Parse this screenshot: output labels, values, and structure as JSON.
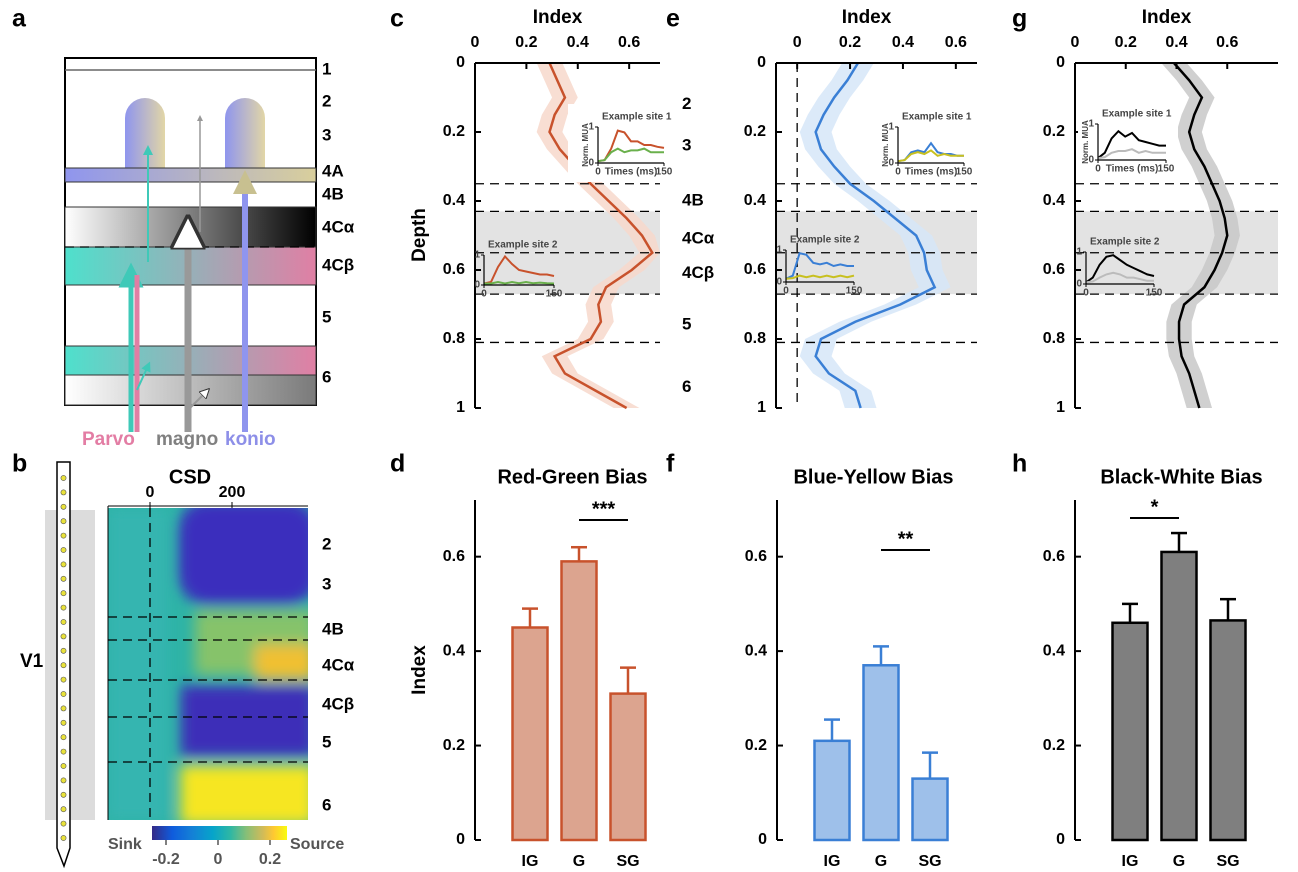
{
  "panel_labels": [
    "a",
    "b",
    "c",
    "d",
    "e",
    "f",
    "g",
    "h"
  ],
  "diagram": {
    "layers": [
      "1",
      "2",
      "3",
      "4A",
      "4B",
      "4Cα",
      "4Cβ",
      "5",
      "6"
    ],
    "pathways": [
      "Parvo",
      "magno",
      "konio"
    ]
  },
  "csd": {
    "title": "CSD",
    "area": "V1",
    "xticks": [
      0,
      200
    ],
    "layers": [
      "2",
      "3",
      "4B",
      "4Cα",
      "4Cβ",
      "5",
      "6"
    ],
    "colorbar": {
      "low_label": "Sink",
      "high_label": "Source",
      "ticks": [
        -0.2,
        0,
        0.2
      ]
    }
  },
  "chart_data": [
    {
      "type": "line",
      "xlabel": "Index",
      "ylabel": "Depth",
      "xlim": [
        0,
        0.72
      ],
      "xticks": [
        0,
        0.2,
        0.4,
        0.6
      ],
      "ylim": [
        0,
        1
      ],
      "yticks": [
        0,
        0.2,
        0.4,
        0.6,
        0.8,
        1
      ],
      "depth": [
        0,
        0.05,
        0.1,
        0.15,
        0.2,
        0.25,
        0.3,
        0.35,
        0.4,
        0.45,
        0.5,
        0.55,
        0.6,
        0.65,
        0.7,
        0.75,
        0.8,
        0.85,
        0.9,
        0.95,
        1
      ],
      "values": [
        0.29,
        0.32,
        0.35,
        0.31,
        0.29,
        0.33,
        0.39,
        0.45,
        0.52,
        0.59,
        0.65,
        0.69,
        0.61,
        0.51,
        0.48,
        0.49,
        0.45,
        0.31,
        0.35,
        0.47,
        0.59
      ],
      "lower": [
        0.24,
        0.27,
        0.3,
        0.26,
        0.24,
        0.28,
        0.34,
        0.4,
        0.47,
        0.54,
        0.6,
        0.64,
        0.56,
        0.46,
        0.43,
        0.44,
        0.4,
        0.26,
        0.3,
        0.42,
        0.54
      ],
      "upper": [
        0.34,
        0.37,
        0.4,
        0.36,
        0.34,
        0.38,
        0.44,
        0.5,
        0.57,
        0.64,
        0.7,
        0.72,
        0.66,
        0.56,
        0.53,
        0.54,
        0.5,
        0.36,
        0.4,
        0.52,
        0.64
      ],
      "color": "#c8522c",
      "band_color": "#f7d8cb",
      "zero_line": false,
      "boundaries": [
        0.35,
        0.43,
        0.55,
        0.67,
        0.81
      ],
      "layers": [
        "2",
        "3",
        "4B",
        "4Cα",
        "4Cβ",
        "5",
        "6"
      ],
      "insets": [
        {
          "title": "Example site 1",
          "ylabel": "Norm. MUA",
          "xlabel": "Times (ms)",
          "xlim": [
            0,
            150
          ],
          "ylim": [
            0,
            1
          ],
          "xticks": [
            0,
            150
          ],
          "yticks": [
            0,
            1
          ],
          "x": [
            0,
            15,
            30,
            45,
            60,
            75,
            90,
            105,
            120,
            135,
            150
          ],
          "series": [
            {
              "color": "#c8522c",
              "values": [
                0.05,
                0.08,
                0.4,
                0.9,
                0.85,
                0.6,
                0.6,
                0.5,
                0.5,
                0.45,
                0.42
              ]
            },
            {
              "color": "#6ab04c",
              "values": [
                0.05,
                0.08,
                0.3,
                0.4,
                0.3,
                0.35,
                0.35,
                0.4,
                0.3,
                0.3,
                0.3
              ]
            }
          ]
        },
        {
          "title": "Example site 2",
          "xlim": [
            0,
            150
          ],
          "ylim": [
            0,
            1
          ],
          "xticks": [
            0,
            150
          ],
          "yticks": [
            0,
            1
          ],
          "x": [
            0,
            15,
            30,
            45,
            60,
            75,
            90,
            105,
            120,
            135,
            150
          ],
          "series": [
            {
              "color": "#c8522c",
              "values": [
                0.05,
                0.1,
                0.6,
                0.95,
                0.7,
                0.5,
                0.45,
                0.4,
                0.35,
                0.35,
                0.3
              ]
            },
            {
              "color": "#6ab04c",
              "values": [
                0.05,
                0.05,
                0.1,
                0.05,
                0.1,
                0.06,
                0.1,
                0.06,
                0.08,
                0.06,
                0.05
              ]
            }
          ]
        }
      ]
    },
    {
      "type": "line",
      "xlabel": "Index",
      "xlim": [
        -0.08,
        0.68
      ],
      "xticks": [
        0,
        0.2,
        0.4,
        0.6
      ],
      "ylim": [
        0,
        1
      ],
      "yticks": [
        0,
        0.2,
        0.4,
        0.6,
        0.8,
        1
      ],
      "depth": [
        0,
        0.05,
        0.1,
        0.15,
        0.2,
        0.25,
        0.3,
        0.35,
        0.4,
        0.45,
        0.5,
        0.55,
        0.6,
        0.65,
        0.7,
        0.75,
        0.8,
        0.85,
        0.9,
        0.95,
        1
      ],
      "values": [
        0.23,
        0.19,
        0.14,
        0.1,
        0.07,
        0.09,
        0.14,
        0.2,
        0.29,
        0.37,
        0.45,
        0.48,
        0.49,
        0.52,
        0.39,
        0.22,
        0.09,
        0.07,
        0.12,
        0.22,
        0.24
      ],
      "lower": [
        0.17,
        0.13,
        0.08,
        0.04,
        0.01,
        0.03,
        0.08,
        0.14,
        0.23,
        0.31,
        0.39,
        0.42,
        0.43,
        0.46,
        0.33,
        0.16,
        0.03,
        0.01,
        0.06,
        0.16,
        0.18
      ],
      "upper": [
        0.29,
        0.25,
        0.2,
        0.16,
        0.13,
        0.15,
        0.2,
        0.26,
        0.35,
        0.43,
        0.51,
        0.54,
        0.55,
        0.58,
        0.45,
        0.28,
        0.15,
        0.13,
        0.18,
        0.28,
        0.3
      ],
      "color": "#3a7fd5",
      "band_color": "#d6e6f8",
      "zero_line": true,
      "boundaries": [
        0.35,
        0.43,
        0.55,
        0.67,
        0.81
      ],
      "insets": [
        {
          "title": "Example site 1",
          "ylabel": "Norm. MUA",
          "xlabel": "Times (ms)",
          "xlim": [
            0,
            150
          ],
          "ylim": [
            0,
            1
          ],
          "xticks": [
            0,
            150
          ],
          "yticks": [
            0,
            1
          ],
          "x": [
            0,
            15,
            30,
            45,
            60,
            75,
            90,
            105,
            120,
            135,
            150
          ],
          "series": [
            {
              "color": "#3a7fd5",
              "values": [
                0.05,
                0.08,
                0.3,
                0.35,
                0.3,
                0.55,
                0.3,
                0.25,
                0.25,
                0.2,
                0.2
              ]
            },
            {
              "color": "#c8c020",
              "values": [
                0.05,
                0.08,
                0.25,
                0.3,
                0.25,
                0.35,
                0.2,
                0.25,
                0.2,
                0.2,
                0.2
              ]
            }
          ]
        },
        {
          "title": "Example site 2",
          "xlim": [
            0,
            150
          ],
          "ylim": [
            0,
            1
          ],
          "xticks": [
            0,
            150
          ],
          "yticks": [
            0,
            1
          ],
          "x": [
            0,
            15,
            30,
            45,
            60,
            75,
            90,
            105,
            120,
            135,
            150
          ],
          "series": [
            {
              "color": "#3a7fd5",
              "values": [
                0.1,
                0.2,
                0.9,
                0.85,
                0.6,
                0.55,
                0.6,
                0.5,
                0.55,
                0.5,
                0.5
              ]
            },
            {
              "color": "#c8c020",
              "values": [
                0.1,
                0.12,
                0.2,
                0.15,
                0.2,
                0.15,
                0.2,
                0.15,
                0.2,
                0.15,
                0.2
              ]
            }
          ]
        }
      ]
    },
    {
      "type": "line",
      "xlabel": "Index",
      "xlim": [
        0,
        0.8
      ],
      "xticks": [
        0,
        0.2,
        0.4,
        0.6
      ],
      "ylim": [
        0,
        1
      ],
      "yticks": [
        0,
        0.2,
        0.4,
        0.6,
        0.8,
        1
      ],
      "depth": [
        0,
        0.05,
        0.1,
        0.15,
        0.2,
        0.25,
        0.3,
        0.35,
        0.4,
        0.45,
        0.5,
        0.55,
        0.6,
        0.65,
        0.7,
        0.75,
        0.8,
        0.85,
        0.9,
        0.95,
        1
      ],
      "values": [
        0.39,
        0.45,
        0.5,
        0.47,
        0.45,
        0.47,
        0.51,
        0.54,
        0.57,
        0.59,
        0.6,
        0.58,
        0.55,
        0.51,
        0.43,
        0.41,
        0.41,
        0.42,
        0.45,
        0.47,
        0.49
      ],
      "lower": [
        0.34,
        0.4,
        0.45,
        0.42,
        0.4,
        0.42,
        0.46,
        0.49,
        0.52,
        0.54,
        0.55,
        0.53,
        0.5,
        0.46,
        0.38,
        0.36,
        0.36,
        0.37,
        0.4,
        0.42,
        0.44
      ],
      "upper": [
        0.44,
        0.5,
        0.55,
        0.52,
        0.5,
        0.52,
        0.56,
        0.59,
        0.62,
        0.64,
        0.65,
        0.63,
        0.6,
        0.56,
        0.48,
        0.46,
        0.46,
        0.47,
        0.5,
        0.52,
        0.54
      ],
      "color": "#000000",
      "band_color": "#c8c8c8",
      "zero_line": false,
      "boundaries": [
        0.35,
        0.43,
        0.55,
        0.67,
        0.81
      ],
      "insets": [
        {
          "title": "Example site 1",
          "ylabel": "Norm. MUA",
          "xlabel": "Times (ms)",
          "xlim": [
            0,
            150
          ],
          "ylim": [
            0,
            1
          ],
          "xticks": [
            0,
            150
          ],
          "yticks": [
            0,
            1
          ],
          "x": [
            0,
            15,
            30,
            45,
            60,
            75,
            90,
            105,
            120,
            135,
            150
          ],
          "series": [
            {
              "color": "#000000",
              "values": [
                0.05,
                0.2,
                0.6,
                0.8,
                0.65,
                0.75,
                0.55,
                0.5,
                0.45,
                0.4,
                0.4
              ]
            },
            {
              "color": "#bbbbbb",
              "values": [
                0.05,
                0.08,
                0.2,
                0.25,
                0.25,
                0.3,
                0.2,
                0.25,
                0.2,
                0.2,
                0.2
              ]
            }
          ]
        },
        {
          "title": "Example site 2",
          "xlim": [
            0,
            150
          ],
          "ylim": [
            0,
            1
          ],
          "xticks": [
            0,
            150
          ],
          "yticks": [
            0,
            1
          ],
          "x": [
            0,
            15,
            30,
            45,
            60,
            75,
            90,
            105,
            120,
            135,
            150
          ],
          "series": [
            {
              "color": "#000000",
              "values": [
                0.05,
                0.2,
                0.6,
                0.85,
                0.9,
                0.75,
                0.6,
                0.5,
                0.4,
                0.3,
                0.25
              ]
            },
            {
              "color": "#bbbbbb",
              "values": [
                0.05,
                0.08,
                0.2,
                0.3,
                0.35,
                0.3,
                0.2,
                0.2,
                0.15,
                0.1,
                0.1
              ]
            }
          ]
        }
      ]
    },
    {
      "type": "bar",
      "title": "Red-Green Bias",
      "ylabel": "Index",
      "categories": [
        "IG",
        "G",
        "SG"
      ],
      "values": [
        0.45,
        0.59,
        0.31
      ],
      "errors": [
        0.04,
        0.03,
        0.055
      ],
      "color": "#dca48f",
      "edge_color": "#c8522c",
      "ylim": [
        0,
        0.72
      ],
      "yticks": [
        0,
        0.2,
        0.4,
        0.6
      ],
      "significance": "***"
    },
    {
      "type": "bar",
      "title": "Blue-Yellow Bias",
      "categories": [
        "IG",
        "G",
        "SG"
      ],
      "values": [
        0.21,
        0.37,
        0.13
      ],
      "errors": [
        0.045,
        0.04,
        0.055
      ],
      "color": "#9ec0ea",
      "edge_color": "#3a7fd5",
      "ylim": [
        0,
        0.72
      ],
      "yticks": [
        0,
        0.2,
        0.4,
        0.6
      ],
      "significance": "**"
    },
    {
      "type": "bar",
      "title": "Black-White Bias",
      "categories": [
        "IG",
        "G",
        "SG"
      ],
      "values": [
        0.46,
        0.61,
        0.465
      ],
      "errors": [
        0.04,
        0.04,
        0.045
      ],
      "color": "#7f7f7f",
      "edge_color": "#000000",
      "ylim": [
        0,
        0.72
      ],
      "yticks": [
        0,
        0.2,
        0.4,
        0.6
      ],
      "significance": "*"
    }
  ]
}
